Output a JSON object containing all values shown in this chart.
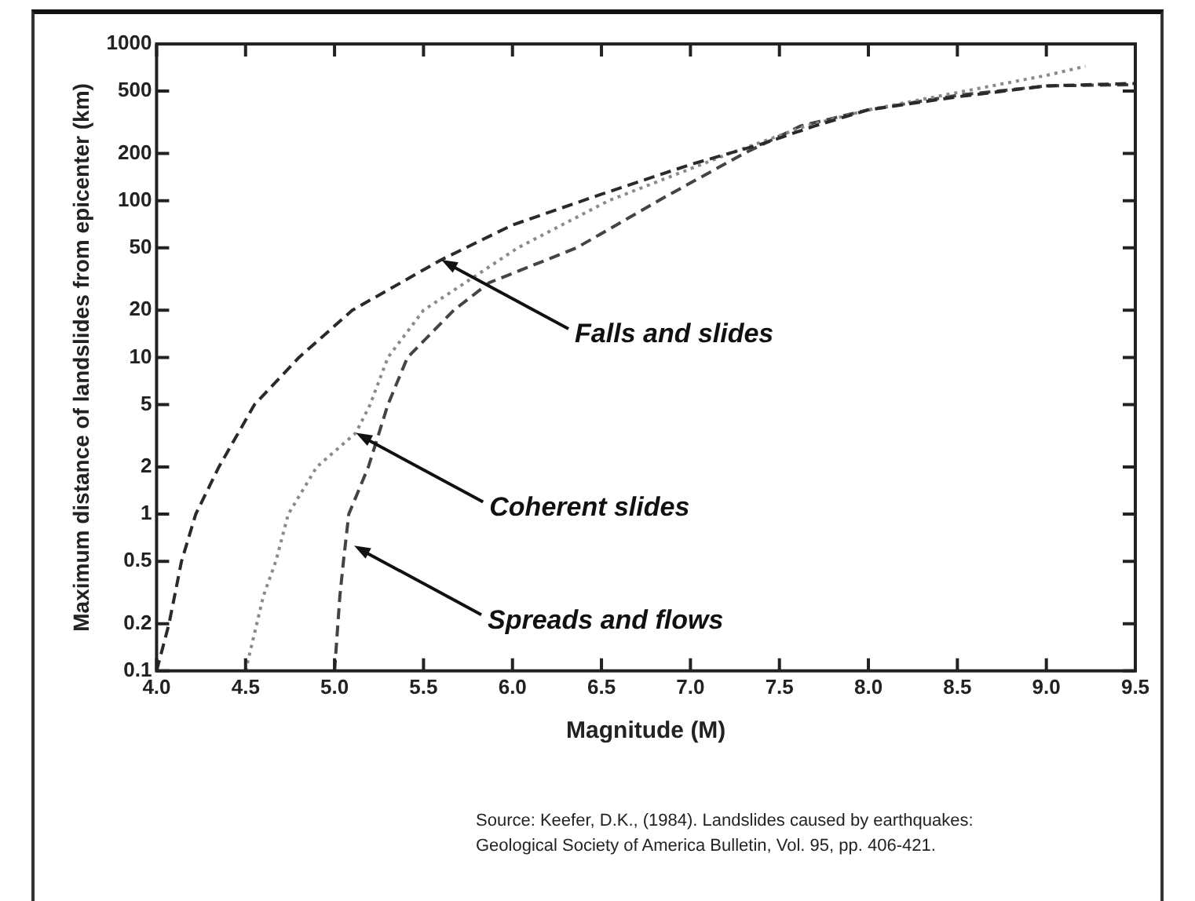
{
  "chart_data": {
    "type": "line",
    "xlabel": "Magnitude (M)",
    "ylabel": "Maximum distance of landslides from epicenter (km)",
    "log": "y",
    "xlim": [
      4.0,
      9.5
    ],
    "xticks": [
      {
        "value": 4,
        "label": "4.0"
      },
      4.5,
      {
        "value": 5,
        "label": "5.0"
      },
      5.5,
      {
        "value": 6,
        "label": "6.0"
      },
      6.5,
      {
        "value": 7,
        "label": "7.0"
      },
      7.5,
      {
        "value": 8,
        "label": "8.0"
      },
      8.5,
      {
        "value": 9,
        "label": "9.0"
      },
      9.5
    ],
    "ylim": [
      0.1,
      1000
    ],
    "yticks": [
      0.1,
      0.2,
      0.5,
      1,
      2,
      5,
      10,
      20,
      50,
      100,
      200,
      500,
      1000
    ],
    "grid": false,
    "legend": false,
    "marker": "none",
    "series": [
      {
        "color": "#2a2a2a",
        "line_style": "dashed",
        "x": [
          4.0,
          4.07,
          4.14,
          4.22,
          4.35,
          4.55,
          4.8,
          5.1,
          5.6,
          6.0,
          6.5,
          7.0,
          7.4,
          7.7,
          8.0,
          8.5,
          9.0,
          9.5
        ],
        "values": [
          0.1,
          0.2,
          0.5,
          1,
          2,
          5,
          10,
          20,
          42,
          70,
          110,
          170,
          230,
          300,
          380,
          460,
          540,
          560
        ]
      },
      {
        "color": "#8a8a8a",
        "line_style": "dotted",
        "x": [
          4.5,
          4.6,
          4.67,
          4.74,
          4.9,
          5.12,
          5.2,
          5.3,
          5.5,
          6.03,
          6.54,
          7.22,
          7.65,
          8.0,
          8.5,
          9.0,
          9.22
        ],
        "values": [
          0.1,
          0.3,
          0.5,
          1,
          2,
          3.3,
          5,
          10,
          20,
          50,
          100,
          200,
          300,
          380,
          490,
          630,
          720
        ]
      },
      {
        "color": "#444444",
        "line_style": "dashed",
        "x": [
          5.0,
          5.03,
          5.05,
          5.08,
          5.19,
          5.3,
          5.41,
          5.67,
          5.87,
          6.36,
          6.82,
          7.3,
          7.62,
          8.0,
          8.5,
          9.0,
          9.5
        ],
        "values": [
          0.1,
          0.3,
          0.5,
          1,
          2,
          5,
          10,
          20,
          30,
          50,
          100,
          200,
          300,
          380,
          470,
          540,
          550
        ]
      }
    ],
    "annotations": [
      {
        "text": "Falls and slides",
        "x": 5.6,
        "y": 42
      },
      {
        "text": "Coherent slides",
        "x": 5.12,
        "y": 3.3
      },
      {
        "text": "Spreads and flows",
        "x": 5.11,
        "y": 0.63
      },
      "Source: Keefer, D.K., (1984). Landslides caused by earthquakes:",
      "Geological Society of America Bulletin, Vol. 95, pp. 406-421."
    ]
  }
}
